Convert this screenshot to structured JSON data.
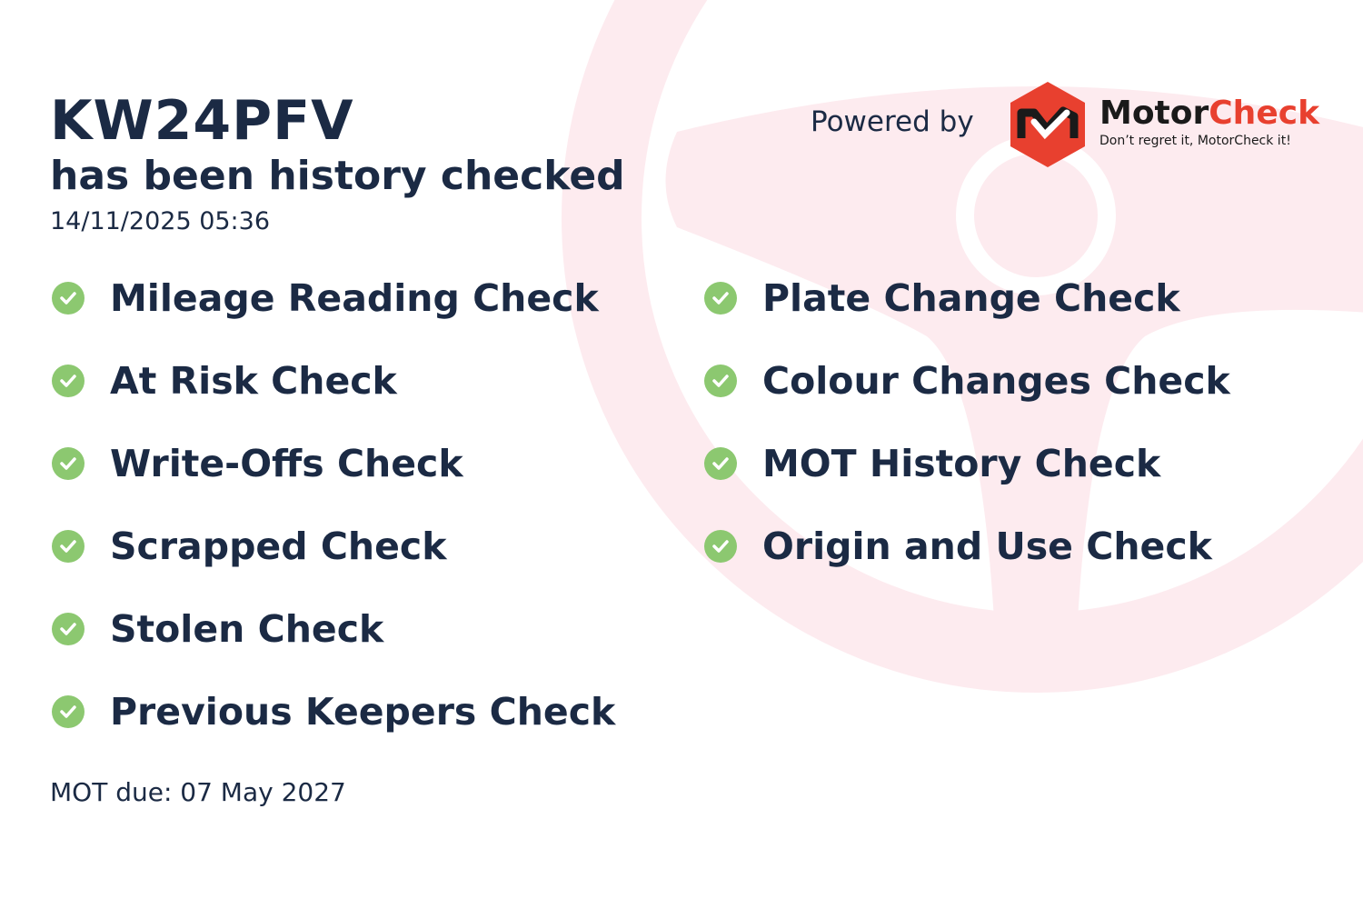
{
  "header": {
    "plate": "KW24PFV",
    "subtitle": "has been history checked",
    "timestamp": "14/11/2025 05:36"
  },
  "branding": {
    "powered_by": "Powered by",
    "brand_first": "Motor",
    "brand_second": "Check",
    "tagline": "Don’t regret it, MotorCheck it!",
    "brand_color": "#e8402f"
  },
  "checks_left": [
    {
      "label": "Mileage Reading Check",
      "icon": "check-circle-icon"
    },
    {
      "label": "At Risk Check",
      "icon": "check-circle-icon"
    },
    {
      "label": "Write-Offs Check",
      "icon": "check-circle-icon"
    },
    {
      "label": "Scrapped Check",
      "icon": "check-circle-icon"
    },
    {
      "label": "Stolen Check",
      "icon": "check-circle-icon"
    },
    {
      "label": "Previous Keepers Check",
      "icon": "check-circle-icon"
    }
  ],
  "checks_right": [
    {
      "label": "Plate Change Check",
      "icon": "check-circle-icon"
    },
    {
      "label": "Colour Changes Check",
      "icon": "check-circle-icon"
    },
    {
      "label": "MOT History Check",
      "icon": "check-circle-icon"
    },
    {
      "label": "Origin and Use Check",
      "icon": "check-circle-icon"
    }
  ],
  "footer": {
    "mot_due": "MOT due: 07 May 2027"
  },
  "colors": {
    "text": "#1b2a44",
    "check": "#8cc870",
    "background_watermark": "#fdebef"
  }
}
